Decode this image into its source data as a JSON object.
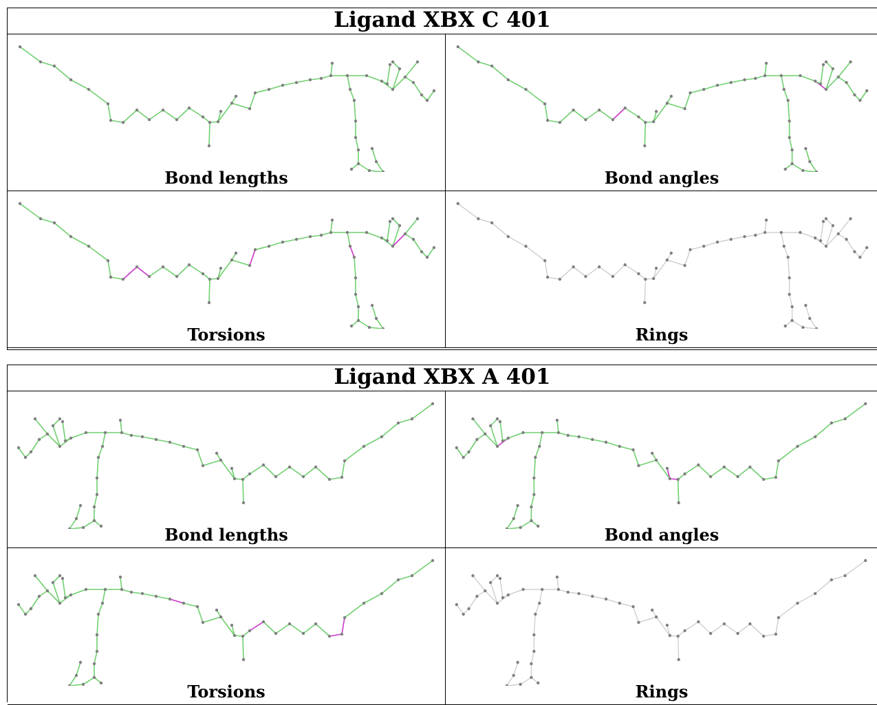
{
  "colors": {
    "good": "#6fcf6f",
    "bad": "#cc33cc",
    "neutral": "#c8c8c8",
    "atom": "#808080"
  },
  "ligands": [
    {
      "title": "Ligand XBX C 401",
      "panels": [
        {
          "label": "Bond lengths",
          "mode": "green",
          "highlights": []
        },
        {
          "label": "Bond angles",
          "mode": "green",
          "highlights": [
            11,
            45
          ]
        },
        {
          "label": "Torsions",
          "mode": "green",
          "highlights": [
            7,
            8,
            20,
            30,
            40,
            50
          ]
        },
        {
          "label": "Rings",
          "mode": "gray",
          "highlights": []
        }
      ]
    },
    {
      "title": "Ligand XBX A 401",
      "panels": [
        {
          "label": "Bond lengths",
          "mode": "green",
          "highlights": []
        },
        {
          "label": "Bond angles",
          "mode": "green",
          "highlights": [
            15,
            16,
            45
          ]
        },
        {
          "label": "Torsions",
          "mode": "green",
          "highlights": [
            5,
            6,
            12,
            22,
            40,
            41
          ]
        },
        {
          "label": "Rings",
          "mode": "gray",
          "highlights": []
        }
      ]
    }
  ]
}
